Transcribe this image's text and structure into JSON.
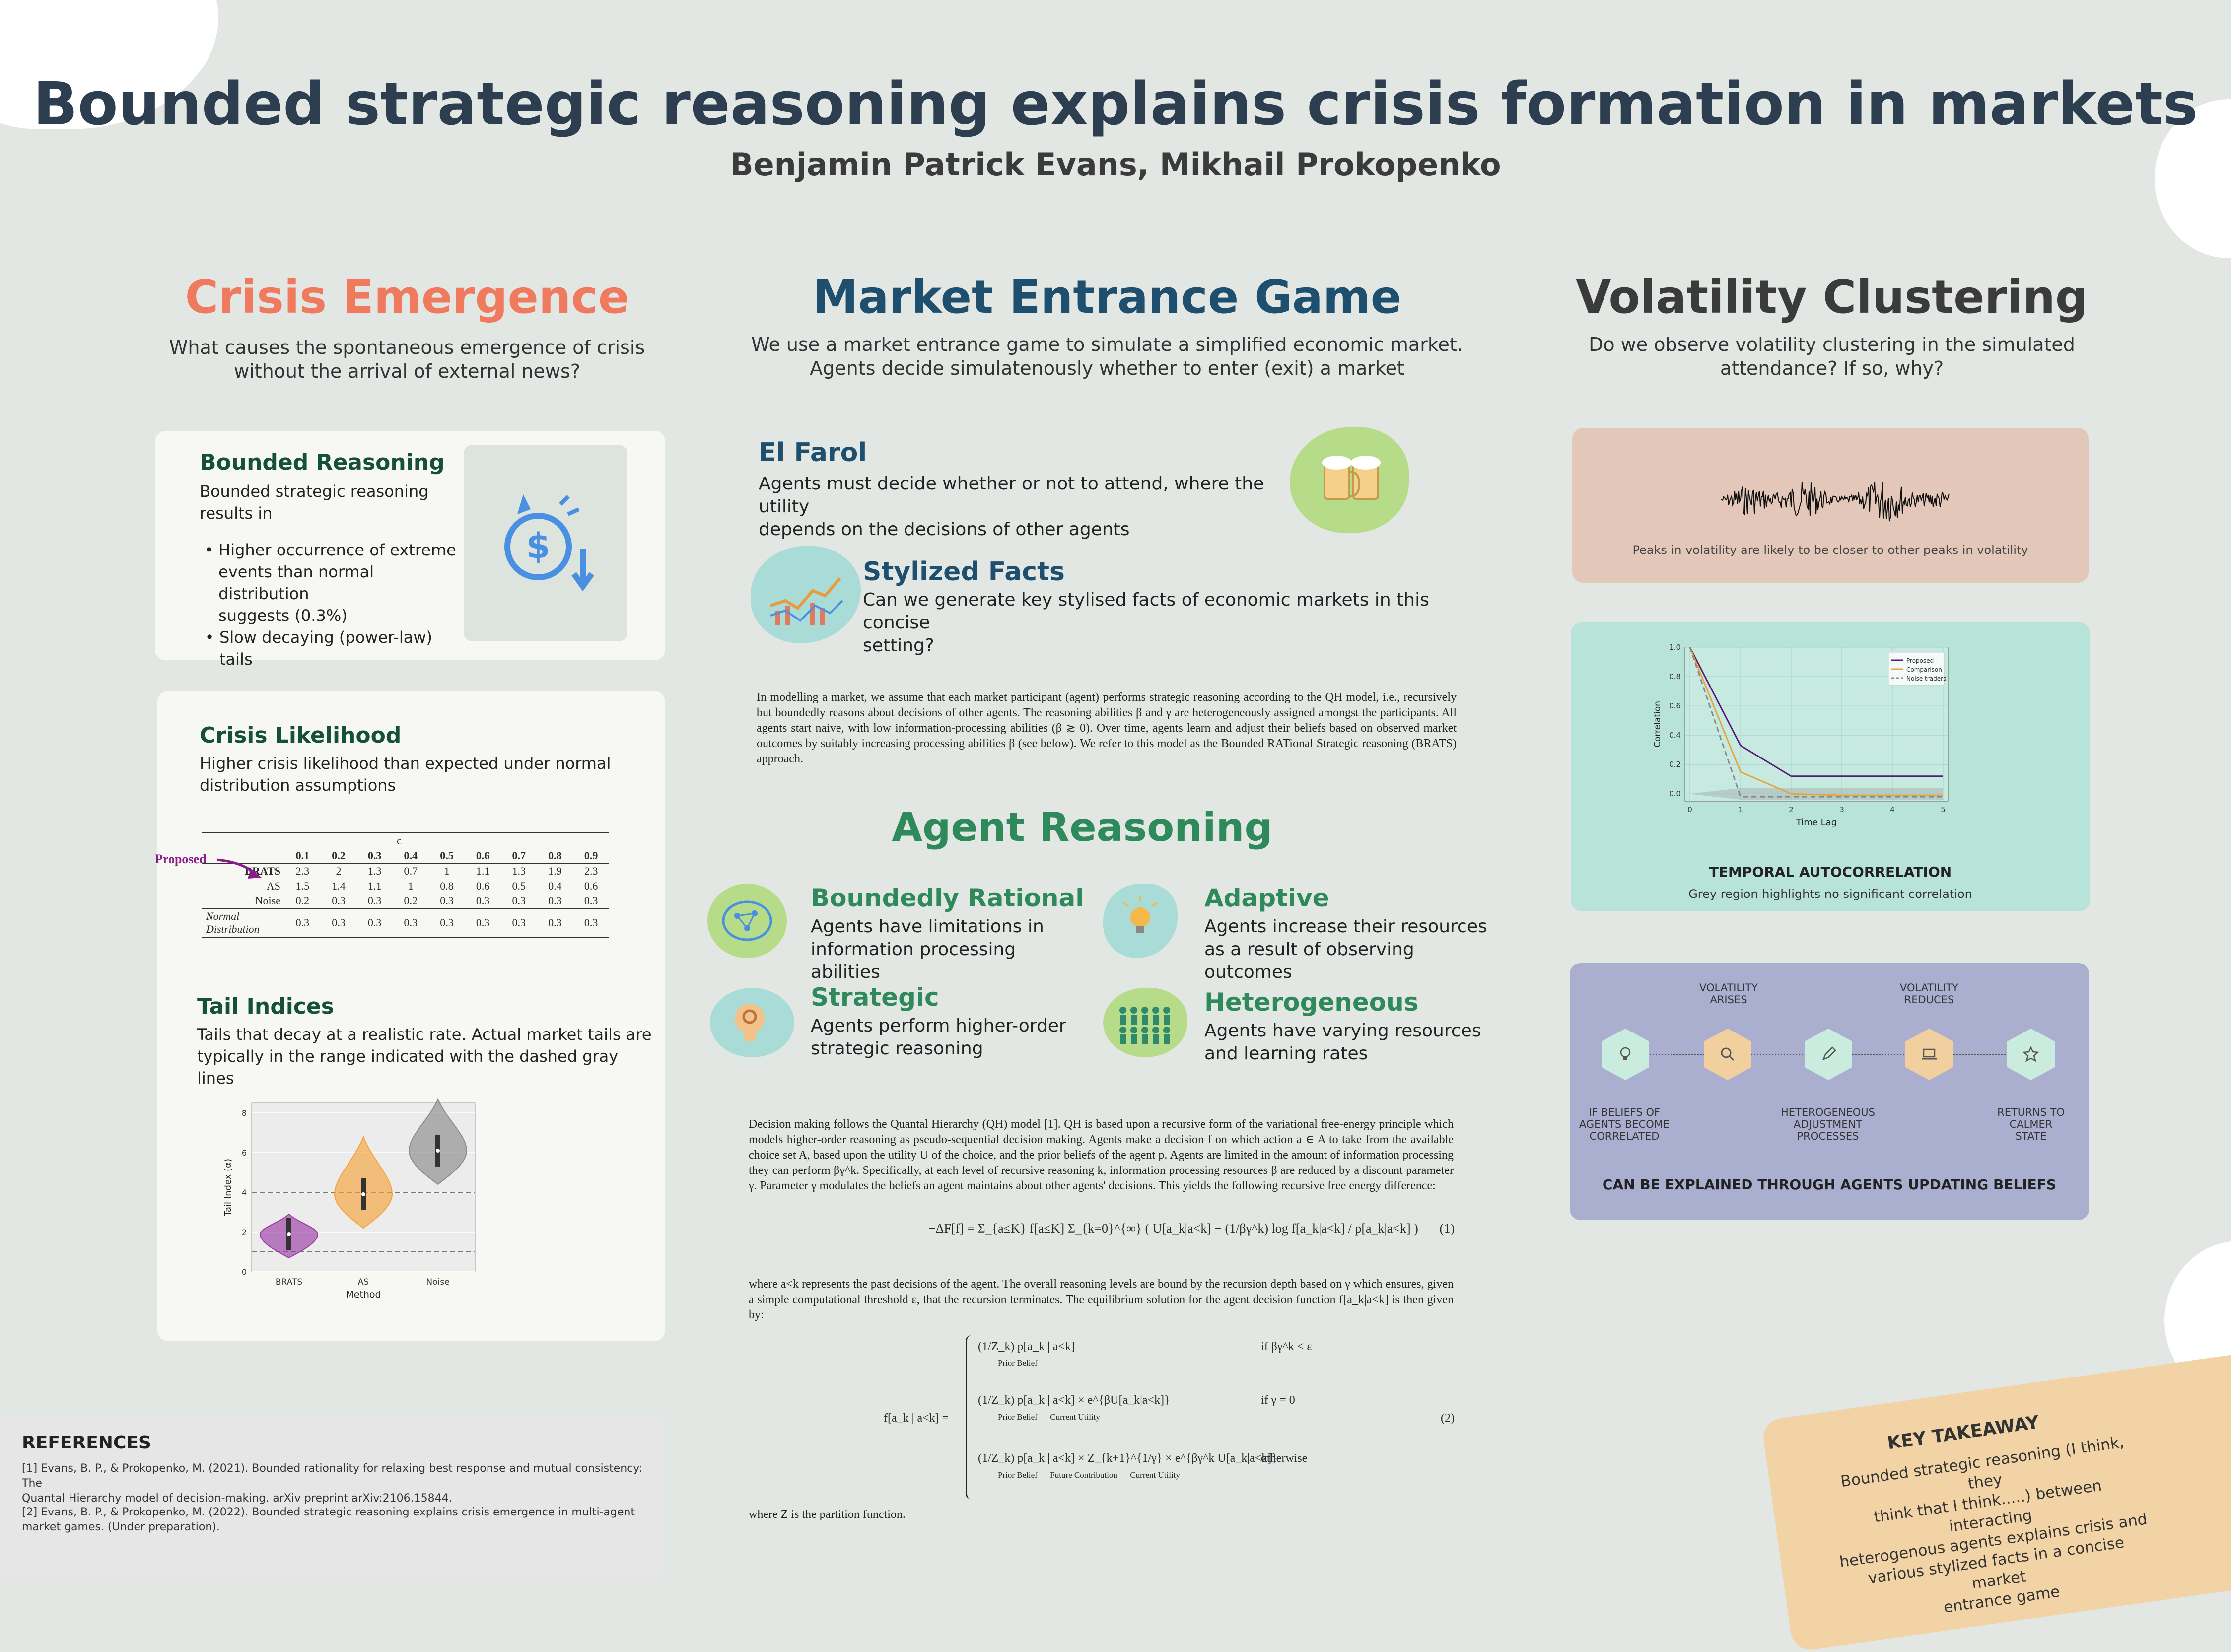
{
  "header": {
    "title": "Bounded strategic reasoning explains crisis formation in markets",
    "authors": "Benjamin Patrick Evans, Mikhail Prokopenko"
  },
  "colors": {
    "crisis": "#f07a5e",
    "market": "#1e4f6e",
    "volatility": "#3b3b3b",
    "green": "#2f8a5b",
    "dark_green": "#14503a"
  },
  "crisis": {
    "heading": "Crisis Emergence",
    "intro_line1": "What causes the spontaneous emergence of crisis",
    "intro_line2": "without the arrival of external news?",
    "bounded": {
      "title": "Bounded Reasoning",
      "text_line1": "Bounded strategic reasoning",
      "text_line2": "results in",
      "bullet1_line1": "Higher occurrence of extreme",
      "bullet1_line2": "events than normal distribution",
      "bullet1_line3": "suggests (0.3%)",
      "bullet2_line1": "Slow decaying (power-law)",
      "bullet2_line2": "tails",
      "icon": "money-crisis-icon"
    },
    "likelihood": {
      "title": "Crisis Likelihood",
      "text_line1": "Higher crisis likelihood than expected under normal",
      "text_line2": "distribution assumptions",
      "proposed_label": "Proposed",
      "c_label": "c",
      "columns": [
        "0.1",
        "0.2",
        "0.3",
        "0.4",
        "0.5",
        "0.6",
        "0.7",
        "0.8",
        "0.9"
      ],
      "rows": [
        {
          "name": "BRATS",
          "values": [
            "2.3",
            "2",
            "1.3",
            "0.7",
            "1",
            "1.1",
            "1.3",
            "1.9",
            "2.3"
          ]
        },
        {
          "name": "AS",
          "values": [
            "1.5",
            "1.4",
            "1.1",
            "1",
            "0.8",
            "0.6",
            "0.5",
            "0.4",
            "0.6"
          ]
        },
        {
          "name": "Noise",
          "values": [
            "0.2",
            "0.3",
            "0.3",
            "0.2",
            "0.3",
            "0.3",
            "0.3",
            "0.3",
            "0.3"
          ]
        },
        {
          "name": "Normal Distribution",
          "values": [
            "0.3",
            "0.3",
            "0.3",
            "0.3",
            "0.3",
            "0.3",
            "0.3",
            "0.3",
            "0.3"
          ]
        }
      ]
    },
    "tail": {
      "title": "Tail Indices",
      "text_line1": "Tails that decay at a realistic rate. Actual market tails are",
      "text_line2": "typically in the range indicated with the dashed gray lines"
    }
  },
  "market": {
    "heading": "Market Entrance Game",
    "intro_line1": "We use a market entrance game to simulate a simplified economic market.",
    "intro_line2": "Agents decide simulatenously whether to enter (exit) a market",
    "elfarol": {
      "title": "El Farol",
      "text_line1": "Agents must decide whether or not to attend, where the utility",
      "text_line2": "depends on the decisions of other agents",
      "icon": "beer-mugs-icon"
    },
    "stylized": {
      "title": "Stylized Facts",
      "text_line1": "Can we generate key stylised facts of economic markets in this concise",
      "text_line2": "setting?",
      "icon": "market-chart-icon"
    },
    "para1": "In modelling a market, we assume that each market participant (agent) performs strategic reasoning according to the QH model, i.e., recursively but boundedly reasons about decisions of other agents. The reasoning abilities β and γ are heterogeneously assigned amongst the participants. All agents start naive, with low information-processing abilities (β ≳ 0). Over time, agents learn and adjust their beliefs based on observed market outcomes by suitably increasing processing abilities β (see below). We refer to this model as the Bounded RATional Strategic reasoning (BRATS) approach.",
    "reasoning": {
      "heading": "Agent Reasoning",
      "items": [
        {
          "title": "Boundedly Rational",
          "line1": "Agents have limitations in",
          "line2": "information processing abilities",
          "icon": "brain-network-icon"
        },
        {
          "title": "Adaptive",
          "line1": "Agents increase their resources",
          "line2": "as a result of observing outcomes",
          "icon": "lightbulb-icon"
        },
        {
          "title": "Strategic",
          "line1": "Agents perform higher-order",
          "line2": "strategic reasoning",
          "icon": "head-gear-icon"
        },
        {
          "title": "Heterogeneous",
          "line1": "Agents have varying resources",
          "line2": "and learning rates",
          "icon": "crowd-icon"
        }
      ]
    },
    "para2": "Decision making follows the Quantal Hierarchy (QH) model [1]. QH is based upon a recursive form of the variational free-energy principle which models higher-order reasoning as pseudo-sequential decision making. Agents make a decision f on which action a ∈ A to take from the available choice set A, based upon the utility U of the choice, and the prior beliefs of the agent p. Agents are limited in the amount of information processing they can perform βγ^k. Specifically, at each level of recursive reasoning k, information processing resources β are reduced by a discount parameter γ. Parameter γ modulates the beliefs an agent maintains about other agents' decisions. This yields the following recursive free energy difference:",
    "eq1": "−ΔF[f] = Σ_{a≤K} f[a≤K] Σ_{k=0}^{∞} ( U[a_k|a<k] − (1/βγ^k) log f[a_k|a<k] / p[a_k|a<k] )",
    "eq1_num": "(1)",
    "para3": "where a<k represents the past decisions of the agent. The overall reasoning levels are bound by the recursion depth based on γ which ensures, given a simple computational threshold ε, that the recursion terminates. The equilibrium solution for the agent decision function f[a_k|a<k] is then given by:",
    "eq2_lhs": "f[a_k | a<k] =",
    "eq2_case1": "(1/Z_k) p[a_k | a<k]",
    "eq2_case1_note": "Prior Belief",
    "eq2_case1_cond": "if βγ^k < ε",
    "eq2_case2": "(1/Z_k) p[a_k | a<k] × e^{βU[a_k|a<k]}",
    "eq2_case2_note": "Prior Belief      Current Utility",
    "eq2_case2_cond": "if γ = 0",
    "eq2_case3": "(1/Z_k) p[a_k | a<k] × Z_{k+1}^{1/γ} × e^{βγ^k U[a_k|a<k]}",
    "eq2_case3_note": "Prior Belief      Future Contribution      Current Utility",
    "eq2_case3_cond": "otherwise",
    "eq2_num": "(2)",
    "para4": "where Z is the partition function."
  },
  "volatility": {
    "heading": "Volatility Clustering",
    "intro_line1": "Do we observe volatility clustering in the simulated",
    "intro_line2": "attendance? If so, why?",
    "peaks_caption": "Peaks in volatility are likely to be closer to other peaks in volatility",
    "autocorr": {
      "title": "TEMPORAL AUTOCORRELATION",
      "caption": "Grey region highlights no significant correlation"
    },
    "process": {
      "steps": [
        {
          "label_line1": "IF BELIEFS OF",
          "label_line2": "AGENTS BECOME",
          "label_line3": "CORRELATED",
          "icon": "bulb-icon"
        },
        {
          "label_line1": "VOLATILITY",
          "label_line2": "ARISES",
          "icon": "search-icon"
        },
        {
          "label_line1": "HETEROGENEOUS",
          "label_line2": "ADJUSTMENT",
          "label_line3": "PROCESSES",
          "icon": "pencil-icon"
        },
        {
          "label_line1": "VOLATILITY",
          "label_line2": "REDUCES",
          "icon": "laptop-icon"
        },
        {
          "label_line1": "RETURNS TO",
          "label_line2": "CALMER",
          "label_line3": "STATE",
          "icon": "star-icon"
        }
      ],
      "conclusion": "CAN BE EXPLAINED THROUGH AGENTS UPDATING BELIEFS"
    }
  },
  "references": {
    "title": "REFERENCES",
    "ref1_line1": "[1] Evans, B. P., & Prokopenko, M. (2021). Bounded rationality for relaxing best response and mutual consistency: The",
    "ref1_line2": "Quantal Hierarchy model of decision-making. arXiv preprint arXiv:2106.15844.",
    "ref2_line1": "[2] Evans, B. P., & Prokopenko, M. (2022). Bounded strategic reasoning explains crisis emergence in multi-agent",
    "ref2_line2": "market games. (Under preparation)."
  },
  "takeaway": {
    "title": "KEY TAKEAWAY",
    "line1": "Bounded strategic reasoning (I think,  they",
    "line2": "think that I think.....) between interacting",
    "line3": "heterogenous  agents explains crisis and",
    "line4": "various stylized facts in a concise market",
    "line5": "entrance game"
  },
  "chart_data": [
    {
      "type": "violin",
      "xlabel": "Method",
      "ylabel": "Tail Index (α)",
      "categories": [
        "BRATS",
        "AS",
        "Noise"
      ],
      "ylim": [
        0,
        8.5
      ],
      "yticks": [
        0,
        2,
        4,
        6,
        8
      ],
      "medians": [
        1.9,
        3.9,
        6.1
      ],
      "ranges": [
        [
          0.7,
          2.9
        ],
        [
          2.2,
          6.8
        ],
        [
          4.4,
          8.7
        ]
      ],
      "reference_lines": [
        1.0,
        4.0
      ],
      "colors": [
        "#9b3da6",
        "#f5a43b",
        "#8c8c8c"
      ]
    },
    {
      "type": "line",
      "xlabel": "Time Lag",
      "ylabel": "Correlation",
      "x": [
        0,
        1,
        2,
        3,
        4,
        5
      ],
      "ylim": [
        -0.05,
        1.0
      ],
      "yticks": [
        0.0,
        0.2,
        0.4,
        0.6,
        0.8,
        1.0
      ],
      "series": [
        {
          "name": "Proposed",
          "values": [
            1.0,
            0.33,
            0.12,
            0.12,
            0.12,
            0.12
          ],
          "color": "#5a1a7a"
        },
        {
          "name": "Comparison",
          "values": [
            1.0,
            0.15,
            0.0,
            -0.01,
            -0.01,
            -0.01
          ],
          "color": "#e8a33a"
        },
        {
          "name": "Noise traders",
          "values": [
            1.0,
            -0.02,
            -0.02,
            -0.02,
            -0.02,
            -0.02
          ],
          "color": "#888888"
        }
      ],
      "legend_position": "top-right",
      "grid": true
    }
  ]
}
